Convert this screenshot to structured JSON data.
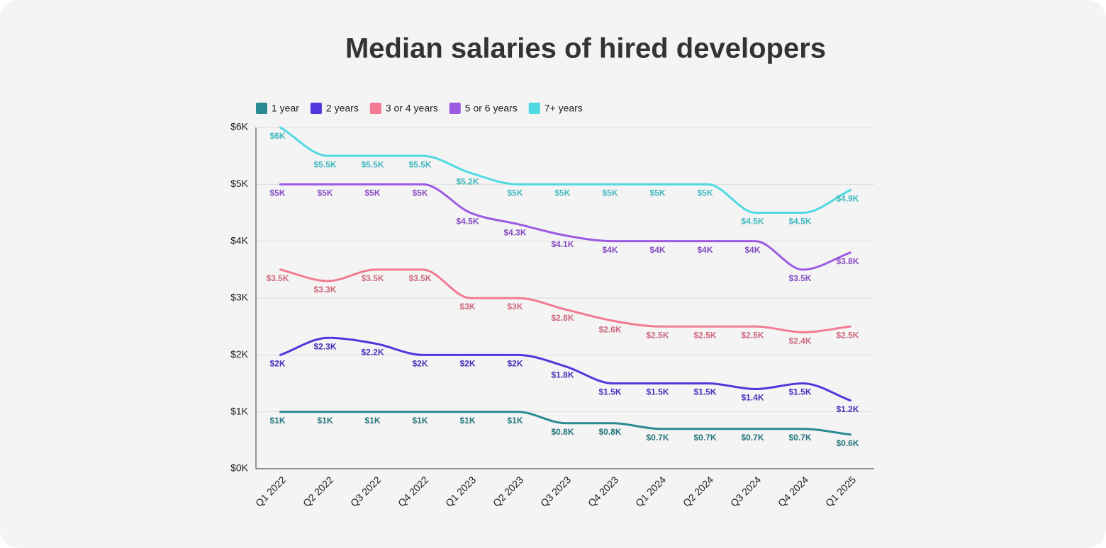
{
  "chart_data": {
    "type": "line",
    "title": "Median salaries of hired developers",
    "categories": [
      "Q1 2022",
      "Q2 2022",
      "Q3 2022",
      "Q4 2022",
      "Q1 2023",
      "Q2 2023",
      "Q3 2023",
      "Q4 2023",
      "Q1 2024",
      "Q2 2024",
      "Q3 2024",
      "Q4 2024",
      "Q1 2025"
    ],
    "ylim": [
      0,
      6
    ],
    "yticks": [
      {
        "value": 0,
        "label": "$0K"
      },
      {
        "value": 1,
        "label": "$1K"
      },
      {
        "value": 2,
        "label": "$2K"
      },
      {
        "value": 3,
        "label": "$3K"
      },
      {
        "value": 4,
        "label": "$4K"
      },
      {
        "value": 5,
        "label": "$5K"
      },
      {
        "value": 6,
        "label": "$6K"
      }
    ],
    "grid": true,
    "legend": "top-left",
    "series": [
      {
        "name": "1 year",
        "color": "#2a8a92",
        "values": [
          1,
          1,
          1,
          1,
          1,
          1,
          0.8,
          0.8,
          0.7,
          0.7,
          0.7,
          0.7,
          0.6
        ],
        "value_labels": [
          "$1K",
          "$1K",
          "$1K",
          "$1K",
          "$1K",
          "$1K",
          "$0.8K",
          "$0.8K",
          "$0.7K",
          "$0.7K",
          "$0.7K",
          "$0.7K",
          "$0.6K"
        ]
      },
      {
        "name": "2 years",
        "color": "#5038dc",
        "values": [
          2,
          2.3,
          2.2,
          2,
          2,
          2,
          1.8,
          1.5,
          1.5,
          1.5,
          1.4,
          1.5,
          1.2
        ],
        "value_labels": [
          "$2K",
          "$2.3K",
          "$2.2K",
          "$2K",
          "$2K",
          "$2K",
          "$1.8K",
          "$1.5K",
          "$1.5K",
          "$1.5K",
          "$1.4K",
          "$1.5K",
          "$1.2K"
        ]
      },
      {
        "name": "3 or 4 years",
        "color": "#f27a93",
        "values": [
          3.5,
          3.3,
          3.5,
          3.5,
          3,
          3,
          2.8,
          2.6,
          2.5,
          2.5,
          2.5,
          2.4,
          2.5
        ],
        "value_labels": [
          "$3.5K",
          "$3.3K",
          "$3.5K",
          "$3.5K",
          "$3K",
          "$3K",
          "$2.8K",
          "$2.6K",
          "$2.5K",
          "$2.5K",
          "$2.5K",
          "$2.4K",
          "$2.5K"
        ]
      },
      {
        "name": "5 or 6 years",
        "color": "#9c5ae3",
        "values": [
          5,
          5,
          5,
          5,
          4.5,
          4.3,
          4.1,
          4,
          4,
          4,
          4,
          3.5,
          3.8
        ],
        "value_labels": [
          "$5K",
          "$5K",
          "$5K",
          "$5K",
          "$4.5K",
          "$4.3K",
          "$4.1K",
          "$4K",
          "$4K",
          "$4K",
          "$4K",
          "$3.5K",
          "$3.8K"
        ]
      },
      {
        "name": "7+ years",
        "color": "#4fd9e2",
        "values": [
          6,
          5.5,
          5.5,
          5.5,
          5.2,
          5,
          5,
          5,
          5,
          5,
          4.5,
          4.5,
          4.9
        ],
        "value_labels": [
          "$6K",
          "$5.5K",
          "$5.5K",
          "$5.5K",
          "$5.2K",
          "$5K",
          "$5K",
          "$5K",
          "$5K",
          "$5K",
          "$4.5K",
          "$4.5K",
          "$4.9K"
        ]
      }
    ]
  }
}
